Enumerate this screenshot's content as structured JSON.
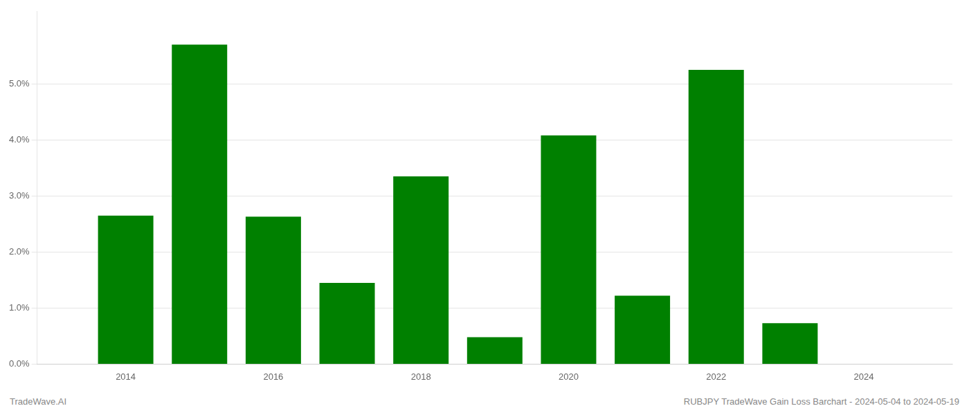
{
  "chart_data": {
    "type": "bar",
    "x": [
      2014,
      2015,
      2016,
      2017,
      2018,
      2019,
      2020,
      2021,
      2022,
      2023,
      2024
    ],
    "values": [
      0.0265,
      0.057,
      0.0263,
      0.0145,
      0.0335,
      0.0048,
      0.0408,
      0.0122,
      0.0525,
      0.0073,
      0.0
    ],
    "color": "#008000",
    "xlim": [
      2012.8,
      2025.2
    ],
    "xticks": [
      2014,
      2016,
      2018,
      2020,
      2022,
      2024
    ],
    "ylim": [
      0,
      0.063
    ],
    "yticks": [
      {
        "value": 0.0,
        "label": "0.0%"
      },
      {
        "value": 0.01,
        "label": "1.0%"
      },
      {
        "value": 0.02,
        "label": "2.0%"
      },
      {
        "value": 0.03,
        "label": "3.0%"
      },
      {
        "value": 0.04,
        "label": "4.0%"
      },
      {
        "value": 0.05,
        "label": "5.0%"
      }
    ],
    "grid": true,
    "annotations": [
      "TradeWave.AI",
      "RUBJPY TradeWave Gain Loss Barchart - 2024-05-04 to 2024-05-19"
    ]
  }
}
